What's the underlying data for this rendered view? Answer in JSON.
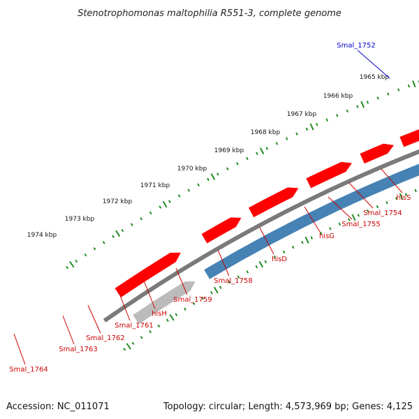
{
  "title": "Stenotrophomonas maltophilia R551-3, complete genome",
  "footer": {
    "accession": "Accession: NC_011071",
    "stats": "Topology: circular; Length: 4,573,969 bp; Genes: 4,125"
  },
  "colors": {
    "red": "#ff0000",
    "blue": "#0000dd",
    "label_red": "#cc0000",
    "label_blue": "#0000cc",
    "tick_green": "#228b22",
    "backbone": "#7a7a7a",
    "steel_blue": "#4682b4",
    "light_red": "#f08080",
    "green_gene": "#3cb43c",
    "gray_gene": "#666666",
    "light_gray_gene": "#bbbbbb"
  },
  "scale_labels": [
    "1965 kbp",
    "1966 kbp",
    "1967 kbp",
    "1968 kbp",
    "1969 kbp",
    "1970 kbp",
    "1971 kbp",
    "1972 kbp",
    "1973 kbp",
    "1974 kbp"
  ],
  "gene_labels": [
    {
      "text": "Smal_1752",
      "color": "blue"
    },
    {
      "text": "hisS",
      "color": "red"
    },
    {
      "text": "Smal_1754",
      "color": "red"
    },
    {
      "text": "Smal_1755",
      "color": "red"
    },
    {
      "text": "hisG",
      "color": "red"
    },
    {
      "text": "hisD",
      "color": "red"
    },
    {
      "text": "Smal_1758",
      "color": "red"
    },
    {
      "text": "Smal_1759",
      "color": "red"
    },
    {
      "text": "hisH",
      "color": "red"
    },
    {
      "text": "Smal_1761",
      "color": "red"
    },
    {
      "text": "Smal_1762",
      "color": "red"
    },
    {
      "text": "Smal_1763",
      "color": "red"
    },
    {
      "text": "Smal_1764",
      "color": "red"
    }
  ]
}
